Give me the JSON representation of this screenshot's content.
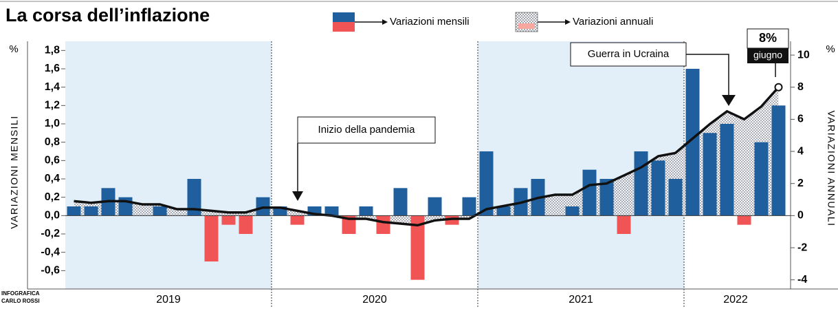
{
  "chart_data": {
    "type": "bar_line",
    "title": "La corsa dell’inflazione",
    "legend": [
      "Variazioni mensili",
      "Variazioni annuali"
    ],
    "left_unit": "%",
    "ylabel": "VARIAZIONI MENSILI",
    "right_unit": "%",
    "y2label": "VARIAZIONI ANNUALI",
    "credit": [
      "INFOGRAFICA",
      "CARLO ROSSI"
    ],
    "years": [
      "2019",
      "2020",
      "2021",
      "2022"
    ],
    "categories": [
      null,
      null,
      null,
      null,
      null,
      null,
      null,
      null,
      null,
      null,
      null,
      null,
      null,
      null,
      null,
      null,
      null,
      null,
      null,
      null,
      null,
      null,
      null,
      null,
      null,
      null,
      null,
      null,
      null,
      null,
      null,
      null,
      null,
      null,
      null,
      null,
      null,
      null,
      null,
      null,
      null,
      null
    ],
    "series": [
      {
        "name": "Variazioni mensili",
        "type": "bar",
        "color": "#1f5f9e",
        "negative_color": "#f05454",
        "values": [
          0.1,
          0.1,
          0.3,
          0.2,
          0.0,
          0.1,
          0.0,
          0.4,
          -0.5,
          -0.1,
          -0.2,
          0.2,
          0.1,
          -0.1,
          0.1,
          0.1,
          -0.2,
          0.1,
          -0.2,
          0.3,
          -0.7,
          0.2,
          -0.1,
          0.2,
          0.7,
          0.1,
          0.3,
          0.4,
          0.0,
          0.1,
          0.5,
          0.4,
          -0.2,
          0.7,
          0.6,
          0.4,
          1.6,
          0.9,
          1.0,
          -0.1,
          0.8,
          1.2
        ]
      },
      {
        "name": "Variazioni annuali",
        "type": "line",
        "axis": "y2",
        "color": "#111111",
        "values": [
          0.9,
          0.8,
          0.9,
          0.9,
          0.7,
          0.7,
          0.4,
          0.4,
          0.3,
          0.2,
          0.2,
          0.5,
          0.5,
          0.3,
          0.1,
          0.0,
          -0.2,
          -0.2,
          -0.4,
          -0.5,
          -0.6,
          -0.3,
          -0.2,
          -0.2,
          0.4,
          0.6,
          0.8,
          1.1,
          1.3,
          1.3,
          1.9,
          2.0,
          2.5,
          3.0,
          3.7,
          3.9,
          4.8,
          5.7,
          6.5,
          6.0,
          6.8,
          8.0
        ]
      }
    ],
    "ylim": [
      -0.8,
      1.9
    ],
    "yticks": [
      {
        "value": -0.6,
        "label": "-0,6"
      },
      {
        "value": -0.4,
        "label": "-0,4"
      },
      {
        "value": -0.2,
        "label": "-0,2"
      },
      {
        "value": 0,
        "label": "0,0"
      },
      {
        "value": 0.2,
        "label": "0,2"
      },
      {
        "value": 0.4,
        "label": "0,4"
      },
      {
        "value": 0.6,
        "label": "0,6"
      },
      {
        "value": 0.8,
        "label": "0,8"
      },
      {
        "value": 1.0,
        "label": "1,0"
      },
      {
        "value": 1.2,
        "label": "1,2"
      },
      {
        "value": 1.4,
        "label": "1,4"
      },
      {
        "value": 1.6,
        "label": "1,6"
      },
      {
        "value": 1.8,
        "label": "1,8"
      }
    ],
    "y2lim": [
      -4.57,
      10.86
    ],
    "y2ticks": [
      -4,
      -2,
      0,
      2,
      4,
      6,
      8,
      10
    ],
    "annotations": {
      "pandemic": "Inizio della pandemia",
      "war": "Guerra in Ucraina",
      "last_value": "8%",
      "last_month": "giugno"
    },
    "shaded_year_color": "#e2eff9"
  }
}
